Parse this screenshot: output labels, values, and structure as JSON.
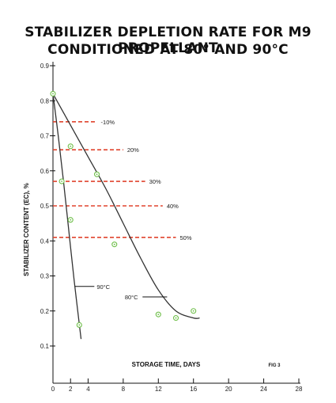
{
  "chart_data": {
    "type": "line",
    "title_line1": "STABILIZER DEPLETION RATE FOR M9 PROPELLANT",
    "title_line2": "CONDITIONED AT 80° AND 90°C",
    "xlabel": "STORAGE TIME, DAYS",
    "ylabel": "STABILIZER CONTENT (EC), %",
    "fig_label": "FIG 3",
    "xlim": [
      0,
      28
    ],
    "ylim": [
      0.1,
      0.9
    ],
    "x_ticks": [
      0,
      2,
      4,
      8,
      12,
      16,
      20,
      24,
      28
    ],
    "y_ticks": [
      0.1,
      0.2,
      0.3,
      0.4,
      0.5,
      0.6,
      0.7,
      0.8,
      0.9
    ],
    "series": [
      {
        "name": "90°C",
        "x": [
          0,
          0.6,
          1.2,
          1.8,
          2.4,
          3.2
        ],
        "y": [
          0.82,
          0.7,
          0.57,
          0.43,
          0.29,
          0.12
        ],
        "color": "#333333"
      },
      {
        "name": "80°C",
        "x": [
          0,
          2,
          4,
          6,
          8,
          10,
          12,
          14,
          16,
          16.7
        ],
        "y": [
          0.82,
          0.73,
          0.64,
          0.55,
          0.45,
          0.35,
          0.26,
          0.2,
          0.18,
          0.18
        ],
        "color": "#333333"
      }
    ],
    "points": {
      "x": [
        0,
        1,
        2,
        2,
        5,
        7,
        12,
        14,
        16,
        3
      ],
      "y": [
        0.82,
        0.57,
        0.67,
        0.46,
        0.59,
        0.39,
        0.19,
        0.18,
        0.2,
        0.16
      ],
      "color": "#6fbf4a"
    },
    "reference_lines": [
      {
        "label": "-10%",
        "y": 0.74,
        "x_end": 5
      },
      {
        "label": "20%",
        "y": 0.66,
        "x_end": 8
      },
      {
        "label": "30%",
        "y": 0.57,
        "x_end": 10.5
      },
      {
        "label": "40%",
        "y": 0.5,
        "x_end": 12.5
      },
      {
        "label": "50%",
        "y": 0.41,
        "x_end": 14
      }
    ],
    "reference_color": "#e0442e",
    "annotations": [
      {
        "label": "90°C",
        "x": 4.8,
        "y": 0.27
      },
      {
        "label": "80°C",
        "x": 8,
        "y": 0.24
      }
    ],
    "grid": false
  }
}
